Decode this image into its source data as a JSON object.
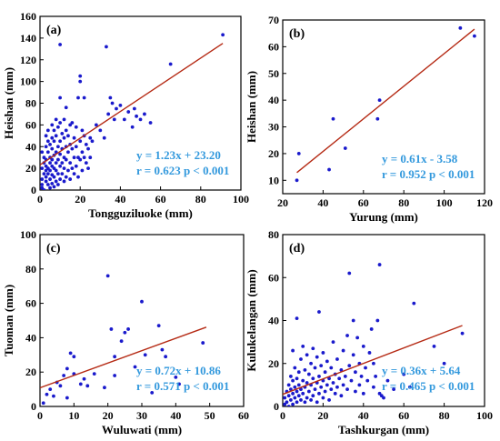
{
  "chart_data": [
    {
      "type": "scatter",
      "panel_label": "(a)",
      "xlabel": "Tongguziluoke (mm)",
      "ylabel": "Heishan (mm)",
      "xlim": [
        0,
        100
      ],
      "ylim": [
        0,
        160
      ],
      "xticks": [
        0,
        20,
        40,
        60,
        80,
        100
      ],
      "yticks": [
        0,
        20,
        40,
        60,
        80,
        100,
        120,
        140,
        160
      ],
      "fit": {
        "slope": 1.23,
        "intercept": 23.2,
        "x_range": [
          0,
          91
        ]
      },
      "equation": "y = 1.23x + 23.20",
      "stats": "r = 0.623 p < 0.001",
      "points": [
        [
          1,
          2
        ],
        [
          1,
          5
        ],
        [
          2,
          0
        ],
        [
          1,
          10
        ],
        [
          2,
          15
        ],
        [
          1,
          20
        ],
        [
          2,
          25
        ],
        [
          2,
          30
        ],
        [
          1,
          35
        ],
        [
          3,
          8
        ],
        [
          3,
          12
        ],
        [
          3,
          18
        ],
        [
          3,
          22
        ],
        [
          3,
          28
        ],
        [
          3,
          40
        ],
        [
          3,
          50
        ],
        [
          4,
          5
        ],
        [
          4,
          15
        ],
        [
          4,
          20
        ],
        [
          4,
          35
        ],
        [
          4,
          45
        ],
        [
          4,
          55
        ],
        [
          5,
          2
        ],
        [
          5,
          10
        ],
        [
          5,
          18
        ],
        [
          5,
          25
        ],
        [
          5,
          30
        ],
        [
          5,
          42
        ],
        [
          6,
          6
        ],
        [
          6,
          14
        ],
        [
          6,
          22
        ],
        [
          6,
          28
        ],
        [
          6,
          38
        ],
        [
          6,
          48
        ],
        [
          6,
          60
        ],
        [
          7,
          3
        ],
        [
          7,
          12
        ],
        [
          7,
          20
        ],
        [
          7,
          32
        ],
        [
          7,
          45
        ],
        [
          7,
          55
        ],
        [
          8,
          8
        ],
        [
          8,
          18
        ],
        [
          8,
          25
        ],
        [
          8,
          35
        ],
        [
          8,
          50
        ],
        [
          8,
          65
        ],
        [
          9,
          5
        ],
        [
          9,
          15
        ],
        [
          9,
          28
        ],
        [
          9,
          40
        ],
        [
          9,
          58
        ],
        [
          10,
          10
        ],
        [
          10,
          22
        ],
        [
          10,
          33
        ],
        [
          10,
          45
        ],
        [
          10,
          62
        ],
        [
          10,
          85
        ],
        [
          10,
          134
        ],
        [
          11,
          15
        ],
        [
          11,
          25
        ],
        [
          11,
          38
        ],
        [
          11,
          52
        ],
        [
          12,
          8
        ],
        [
          12,
          20
        ],
        [
          12,
          30
        ],
        [
          12,
          48
        ],
        [
          12,
          65
        ],
        [
          13,
          12
        ],
        [
          13,
          28
        ],
        [
          13,
          40
        ],
        [
          13,
          55
        ],
        [
          13,
          76
        ],
        [
          14,
          18
        ],
        [
          14,
          35
        ],
        [
          14,
          50
        ],
        [
          15,
          10
        ],
        [
          15,
          25
        ],
        [
          15,
          42
        ],
        [
          15,
          60
        ],
        [
          16,
          20
        ],
        [
          16,
          38
        ],
        [
          16,
          62
        ],
        [
          17,
          15
        ],
        [
          17,
          30
        ],
        [
          17,
          48
        ],
        [
          18,
          22
        ],
        [
          18,
          40
        ],
        [
          18,
          58
        ],
        [
          19,
          12
        ],
        [
          19,
          30
        ],
        [
          19,
          85
        ],
        [
          20,
          28
        ],
        [
          20,
          45
        ],
        [
          20,
          100
        ],
        [
          20,
          105
        ],
        [
          21,
          18
        ],
        [
          21,
          35
        ],
        [
          21,
          55
        ],
        [
          22,
          30
        ],
        [
          22,
          50
        ],
        [
          22,
          85
        ],
        [
          23,
          25
        ],
        [
          23,
          42
        ],
        [
          24,
          20
        ],
        [
          24,
          38
        ],
        [
          25,
          30
        ],
        [
          25,
          48
        ],
        [
          26,
          45
        ],
        [
          28,
          60
        ],
        [
          30,
          55
        ],
        [
          32,
          48
        ],
        [
          33,
          132
        ],
        [
          34,
          70
        ],
        [
          35,
          85
        ],
        [
          36,
          80
        ],
        [
          37,
          65
        ],
        [
          38,
          75
        ],
        [
          40,
          78
        ],
        [
          42,
          65
        ],
        [
          44,
          72
        ],
        [
          46,
          58
        ],
        [
          47,
          75
        ],
        [
          48,
          68
        ],
        [
          50,
          65
        ],
        [
          52,
          70
        ],
        [
          55,
          62
        ],
        [
          65,
          116
        ],
        [
          91,
          143
        ]
      ]
    },
    {
      "type": "scatter",
      "panel_label": "(b)",
      "xlabel": "Yurung (mm)",
      "ylabel": "Heishan (mm)",
      "xlim": [
        20,
        120
      ],
      "ylim": [
        5,
        70
      ],
      "xticks": [
        20,
        40,
        60,
        80,
        100,
        120
      ],
      "yticks": [
        10,
        20,
        30,
        40,
        50,
        60,
        70
      ],
      "fit": {
        "slope": 0.61,
        "intercept": -3.58,
        "x_range": [
          27,
          115
        ]
      },
      "equation": "y = 0.61x - 3.58",
      "stats": "r = 0.952 p < 0.001",
      "points": [
        [
          27,
          10
        ],
        [
          28,
          20
        ],
        [
          43,
          14
        ],
        [
          45,
          33
        ],
        [
          51,
          22
        ],
        [
          67,
          33
        ],
        [
          68,
          40
        ],
        [
          108,
          67
        ],
        [
          115,
          64
        ]
      ]
    },
    {
      "type": "scatter",
      "panel_label": "(c)",
      "xlabel": "Wuluwati (mm)",
      "ylabel": "Tuoman (mm)",
      "xlim": [
        0,
        60
      ],
      "ylim": [
        0,
        100
      ],
      "xticks": [
        0,
        10,
        20,
        30,
        40,
        50,
        60
      ],
      "yticks": [
        0,
        20,
        40,
        60,
        80,
        100
      ],
      "fit": {
        "slope": 0.72,
        "intercept": 10.86,
        "x_range": [
          0,
          49
        ]
      },
      "equation": "y = 0.72x + 10.86",
      "stats": "r = 0.571 p < 0.001",
      "points": [
        [
          1,
          2
        ],
        [
          2,
          7
        ],
        [
          3,
          10
        ],
        [
          4,
          6
        ],
        [
          5,
          14
        ],
        [
          6,
          12
        ],
        [
          7,
          18
        ],
        [
          8,
          5
        ],
        [
          8,
          22
        ],
        [
          9,
          31
        ],
        [
          10,
          29
        ],
        [
          10,
          19
        ],
        [
          12,
          13
        ],
        [
          13,
          16
        ],
        [
          14,
          12
        ],
        [
          16,
          19
        ],
        [
          19,
          11
        ],
        [
          20,
          76
        ],
        [
          21,
          45
        ],
        [
          22,
          18
        ],
        [
          22,
          29
        ],
        [
          24,
          38
        ],
        [
          25,
          43
        ],
        [
          26,
          45
        ],
        [
          28,
          23
        ],
        [
          30,
          61
        ],
        [
          31,
          30
        ],
        [
          33,
          8
        ],
        [
          35,
          47
        ],
        [
          36,
          33
        ],
        [
          37,
          29
        ],
        [
          40,
          17
        ],
        [
          41,
          13
        ],
        [
          48,
          37
        ]
      ]
    },
    {
      "type": "scatter",
      "panel_label": "(d)",
      "xlabel": "Tashkurgan (mm)",
      "ylabel": "Kulukelangan (mm)",
      "xlim": [
        0,
        100
      ],
      "ylim": [
        0,
        80
      ],
      "xticks": [
        0,
        20,
        40,
        60,
        80,
        100
      ],
      "yticks": [
        0,
        20,
        40,
        60,
        80
      ],
      "fit": {
        "slope": 0.36,
        "intercept": 5.64,
        "x_range": [
          0,
          89
        ]
      },
      "equation": "y = 0.36x + 5.64",
      "stats": "r = 0.465 p < 0.001",
      "points": [
        [
          1,
          1
        ],
        [
          1,
          4
        ],
        [
          2,
          2
        ],
        [
          2,
          7
        ],
        [
          3,
          0
        ],
        [
          3,
          5
        ],
        [
          3,
          10
        ],
        [
          4,
          3
        ],
        [
          4,
          8
        ],
        [
          4,
          14
        ],
        [
          5,
          1
        ],
        [
          5,
          6
        ],
        [
          5,
          12
        ],
        [
          5,
          26
        ],
        [
          6,
          4
        ],
        [
          6,
          9
        ],
        [
          6,
          18
        ],
        [
          7,
          2
        ],
        [
          7,
          7
        ],
        [
          7,
          13
        ],
        [
          7,
          41
        ],
        [
          8,
          5
        ],
        [
          8,
          10
        ],
        [
          8,
          16
        ],
        [
          9,
          3
        ],
        [
          9,
          8
        ],
        [
          9,
          22
        ],
        [
          10,
          6
        ],
        [
          10,
          12
        ],
        [
          10,
          28
        ],
        [
          11,
          2
        ],
        [
          11,
          9
        ],
        [
          11,
          17
        ],
        [
          12,
          4
        ],
        [
          12,
          11
        ],
        [
          12,
          24
        ],
        [
          13,
          7
        ],
        [
          13,
          15
        ],
        [
          14,
          3
        ],
        [
          14,
          10
        ],
        [
          14,
          20
        ],
        [
          15,
          5
        ],
        [
          15,
          13
        ],
        [
          15,
          27
        ],
        [
          16,
          8
        ],
        [
          16,
          18
        ],
        [
          17,
          2
        ],
        [
          17,
          11
        ],
        [
          17,
          23
        ],
        [
          18,
          6
        ],
        [
          18,
          14
        ],
        [
          18,
          44
        ],
        [
          19,
          9
        ],
        [
          19,
          19
        ],
        [
          20,
          4
        ],
        [
          20,
          12
        ],
        [
          20,
          25
        ],
        [
          21,
          7
        ],
        [
          21,
          16
        ],
        [
          22,
          10
        ],
        [
          22,
          21
        ],
        [
          23,
          3
        ],
        [
          23,
          13
        ],
        [
          24,
          8
        ],
        [
          24,
          18
        ],
        [
          25,
          11
        ],
        [
          25,
          30
        ],
        [
          26,
          6
        ],
        [
          26,
          15
        ],
        [
          27,
          9
        ],
        [
          27,
          22
        ],
        [
          28,
          13
        ],
        [
          29,
          5
        ],
        [
          29,
          17
        ],
        [
          30,
          10
        ],
        [
          30,
          26
        ],
        [
          31,
          14
        ],
        [
          32,
          8
        ],
        [
          32,
          33
        ],
        [
          33,
          62
        ],
        [
          33,
          19
        ],
        [
          34,
          12
        ],
        [
          35,
          40
        ],
        [
          35,
          24
        ],
        [
          36,
          7
        ],
        [
          36,
          16
        ],
        [
          37,
          32
        ],
        [
          38,
          10
        ],
        [
          38,
          20
        ],
        [
          39,
          14
        ],
        [
          40,
          28
        ],
        [
          40,
          6
        ],
        [
          41,
          18
        ],
        [
          42,
          12
        ],
        [
          43,
          25
        ],
        [
          44,
          36
        ],
        [
          45,
          9
        ],
        [
          45,
          20
        ],
        [
          46,
          14
        ],
        [
          47,
          40
        ],
        [
          48,
          66
        ],
        [
          48,
          6
        ],
        [
          49,
          5
        ],
        [
          50,
          4
        ],
        [
          52,
          12
        ],
        [
          55,
          8
        ],
        [
          60,
          15
        ],
        [
          63,
          9
        ],
        [
          65,
          48
        ],
        [
          75,
          28
        ],
        [
          80,
          20
        ],
        [
          89,
          34
        ]
      ]
    }
  ]
}
